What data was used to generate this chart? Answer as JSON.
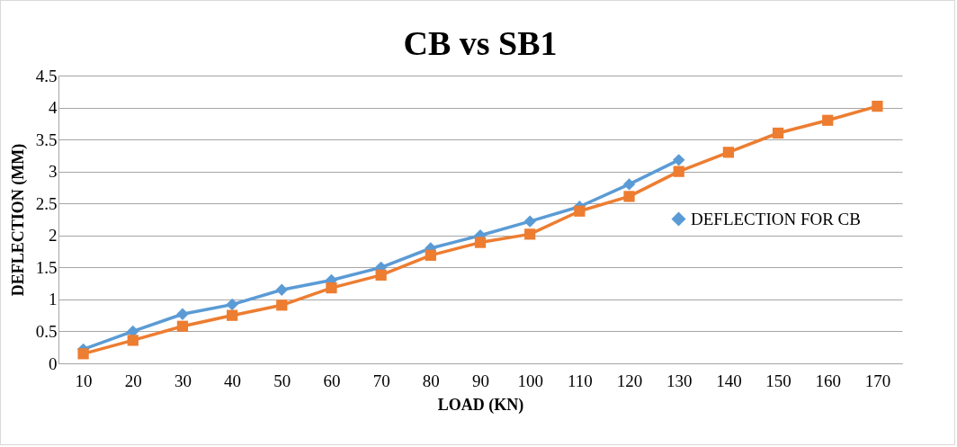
{
  "chart_data": {
    "type": "line",
    "title": "CB vs SB1",
    "xlabel": "LOAD (KN)",
    "ylabel": "DEFLECTION (MM)",
    "categories": [
      "10",
      "20",
      "30",
      "40",
      "50",
      "60",
      "70",
      "80",
      "90",
      "100",
      "110",
      "120",
      "130",
      "140",
      "150",
      "160",
      "170"
    ],
    "series": [
      {
        "name": "DEFLECTION FOR CB",
        "color": "#5b9bd5",
        "marker": "diamond",
        "values": [
          0.22,
          0.5,
          0.77,
          0.92,
          1.15,
          1.3,
          1.5,
          1.8,
          2.0,
          2.22,
          2.45,
          2.8,
          3.18,
          null,
          null,
          null,
          null
        ]
      },
      {
        "color": "#ed7d31",
        "marker": "square",
        "values": [
          0.15,
          0.36,
          0.58,
          0.75,
          0.91,
          1.18,
          1.38,
          1.69,
          1.89,
          2.02,
          2.38,
          2.61,
          3.0,
          3.3,
          3.6,
          3.8,
          4.02
        ]
      }
    ],
    "ylim": [
      0,
      4.5
    ],
    "yticks": [
      0,
      0.5,
      1,
      1.5,
      2,
      2.5,
      3,
      3.5,
      4,
      4.5
    ],
    "grid": "y",
    "legend": "right",
    "line_style": "solid"
  }
}
